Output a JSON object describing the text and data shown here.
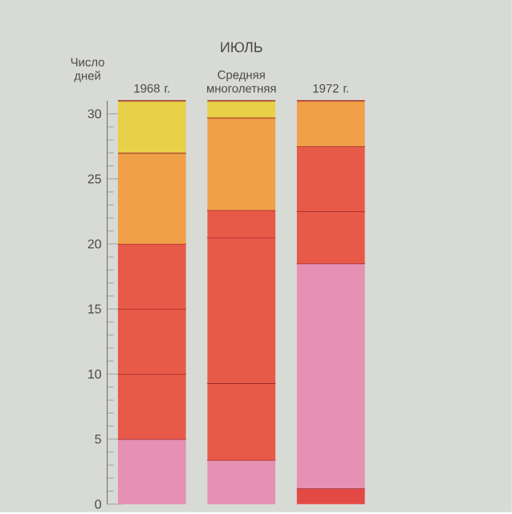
{
  "chart_data": {
    "type": "bar",
    "stacked": true,
    "title": "ИЮЛЬ",
    "ylabel": "Число дней",
    "categories": [
      "1968 г.",
      "Средняя многолетняя",
      "1972 г."
    ],
    "ylim": [
      0,
      31
    ],
    "yticks": [
      0,
      5,
      10,
      15,
      20,
      25,
      30
    ],
    "series": [
      {
        "values": [
          5,
          3.4,
          1.2
        ],
        "colors": [
          "#e690b4",
          "#e690b4",
          "#e44a44"
        ]
      },
      {
        "values": [
          5,
          5.9,
          17.3
        ],
        "colors": [
          "#e85a48",
          "#e85a48",
          "#e690b4"
        ]
      },
      {
        "values": [
          5,
          11.2,
          4
        ],
        "colors": [
          "#e85a48",
          "#e85a48",
          "#e85a48"
        ]
      },
      {
        "values": [
          5,
          2.1,
          5
        ],
        "colors": [
          "#e85a48",
          "#e85a48",
          "#e85a48"
        ]
      },
      {
        "values": [
          7,
          7.1,
          3.5
        ],
        "colors": [
          "#f0a048",
          "#f0a048",
          "#f0a048"
        ]
      },
      {
        "values": [
          4,
          1.3,
          null
        ],
        "colors": [
          "#e8d048",
          "#e8d048",
          null
        ]
      }
    ]
  }
}
